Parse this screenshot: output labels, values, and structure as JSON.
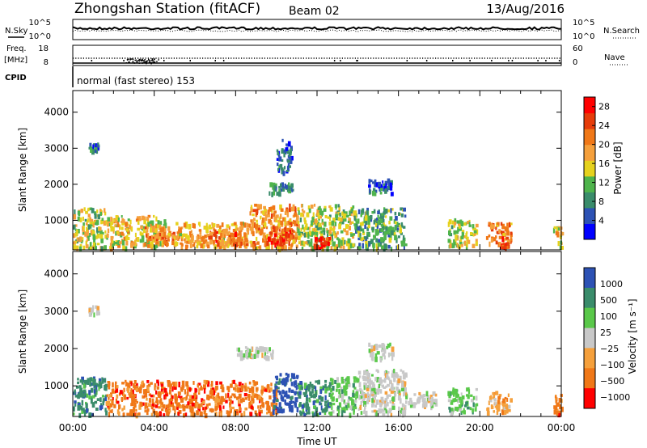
{
  "header": {
    "station": "Zhongshan Station (fitACF)",
    "beam": "Beam 02",
    "date": "13/Aug/2016"
  },
  "top_panels": {
    "nsky_label": "N.Sky",
    "nsearch_label": "N.Search",
    "freq_label_line1": "Freq.",
    "freq_label_line2": "[MHz]",
    "nave_label": "Nave",
    "cpid_label": "CPID",
    "cpid_text": "normal (fast stereo) 153",
    "noise_ticks": [
      "10^5",
      "10^0"
    ],
    "freq_ticks": [
      "18",
      "8"
    ],
    "nave_ticks": [
      "60",
      "0"
    ]
  },
  "chart_data": [
    {
      "type": "heatmap",
      "name": "power-panel",
      "xlabel": "",
      "ylabel": "Slant Range [km]",
      "xlim": [
        0,
        24
      ],
      "ylim": [
        180,
        4600
      ],
      "yticks": [
        1000,
        2000,
        3000,
        4000
      ],
      "colorbar": {
        "label": "Power [dB]",
        "ticks": [
          4,
          8,
          12,
          16,
          20,
          24,
          28
        ],
        "range": [
          0,
          30
        ],
        "colors": [
          "#0000ff",
          "#2d52b4",
          "#3a8c6b",
          "#4fb44c",
          "#e6d21e",
          "#f5a03c",
          "#f07818",
          "#e63c0a",
          "#ff0000"
        ]
      },
      "regions": [
        {
          "t0": 0.0,
          "t1": 1.6,
          "r0": 200,
          "r1": 1300,
          "v": 14
        },
        {
          "t0": 0.7,
          "t1": 1.3,
          "r0": 2900,
          "r1": 3100,
          "v": 6
        },
        {
          "t0": 1.6,
          "t1": 4.5,
          "r0": 200,
          "r1": 1100,
          "v": 16
        },
        {
          "t0": 3.5,
          "t1": 5.0,
          "r0": 300,
          "r1": 800,
          "v": 20
        },
        {
          "t0": 5.0,
          "t1": 8.6,
          "r0": 250,
          "r1": 900,
          "v": 18
        },
        {
          "t0": 6.5,
          "t1": 8.5,
          "r0": 250,
          "r1": 700,
          "v": 22
        },
        {
          "t0": 8.6,
          "t1": 11.0,
          "r0": 200,
          "r1": 1400,
          "v": 20
        },
        {
          "t0": 9.5,
          "t1": 10.8,
          "r0": 300,
          "r1": 800,
          "v": 26
        },
        {
          "t0": 9.6,
          "t1": 10.8,
          "r0": 1700,
          "r1": 2000,
          "v": 8
        },
        {
          "t0": 10.0,
          "t1": 10.7,
          "r0": 2300,
          "r1": 3200,
          "v": 6
        },
        {
          "t0": 11.0,
          "t1": 13.8,
          "r0": 200,
          "r1": 1400,
          "v": 14
        },
        {
          "t0": 11.8,
          "t1": 12.6,
          "r0": 200,
          "r1": 500,
          "v": 27
        },
        {
          "t0": 13.8,
          "t1": 16.3,
          "r0": 200,
          "r1": 1300,
          "v": 10
        },
        {
          "t0": 14.5,
          "t1": 15.7,
          "r0": 1700,
          "r1": 2100,
          "v": 7
        },
        {
          "t0": 18.4,
          "t1": 19.8,
          "r0": 250,
          "r1": 1000,
          "v": 14
        },
        {
          "t0": 20.3,
          "t1": 21.5,
          "r0": 250,
          "r1": 900,
          "v": 20
        },
        {
          "t0": 21.0,
          "t1": 21.4,
          "r0": 200,
          "r1": 500,
          "v": 27
        },
        {
          "t0": 23.6,
          "t1": 24.0,
          "r0": 200,
          "r1": 800,
          "v": 16
        }
      ]
    },
    {
      "type": "heatmap",
      "name": "velocity-panel",
      "xlabel": "Time UT",
      "ylabel": "Slant Range [km]",
      "xlim": [
        0,
        24
      ],
      "ylim": [
        180,
        4600
      ],
      "xticks": [
        "00:00",
        "04:00",
        "08:00",
        "12:00",
        "16:00",
        "20:00",
        "00:00"
      ],
      "yticks": [
        1000,
        2000,
        3000,
        4000
      ],
      "colorbar": {
        "label": "Velocity [m s⁻¹]",
        "ticks": [
          "1000",
          "500",
          "100",
          "25",
          "−25",
          "−100",
          "−500",
          "−1000"
        ],
        "colors": [
          "#2d52b4",
          "#3a8c6b",
          "#5ac84a",
          "#c8c8c8",
          "#f5a03c",
          "#f07818",
          "#ff0000"
        ]
      },
      "regions": [
        {
          "t0": 0.0,
          "t1": 1.6,
          "r0": 200,
          "r1": 1200,
          "v": 1
        },
        {
          "t0": 0.7,
          "t1": 1.2,
          "r0": 2900,
          "r1": 3100,
          "v": 3
        },
        {
          "t0": 1.6,
          "t1": 8.6,
          "r0": 200,
          "r1": 1100,
          "v": 5
        },
        {
          "t0": 8.6,
          "t1": 10.0,
          "r0": 200,
          "r1": 1100,
          "v": 5
        },
        {
          "t0": 8.0,
          "t1": 9.8,
          "r0": 1700,
          "r1": 2000,
          "v": 3
        },
        {
          "t0": 9.8,
          "t1": 11.0,
          "r0": 300,
          "r1": 1300,
          "v": 0
        },
        {
          "t0": 11.0,
          "t1": 12.6,
          "r0": 200,
          "r1": 1100,
          "v": 1
        },
        {
          "t0": 12.6,
          "t1": 14.0,
          "r0": 200,
          "r1": 1200,
          "v": 2
        },
        {
          "t0": 14.0,
          "t1": 16.3,
          "r0": 200,
          "r1": 1400,
          "v": 3
        },
        {
          "t0": 14.5,
          "t1": 15.7,
          "r0": 1700,
          "r1": 2100,
          "v": 3
        },
        {
          "t0": 16.3,
          "t1": 17.8,
          "r0": 400,
          "r1": 800,
          "v": 3
        },
        {
          "t0": 18.4,
          "t1": 19.8,
          "r0": 250,
          "r1": 900,
          "v": 2
        },
        {
          "t0": 20.3,
          "t1": 21.5,
          "r0": 250,
          "r1": 800,
          "v": 4
        },
        {
          "t0": 23.6,
          "t1": 24.0,
          "r0": 200,
          "r1": 800,
          "v": 5
        }
      ]
    }
  ]
}
